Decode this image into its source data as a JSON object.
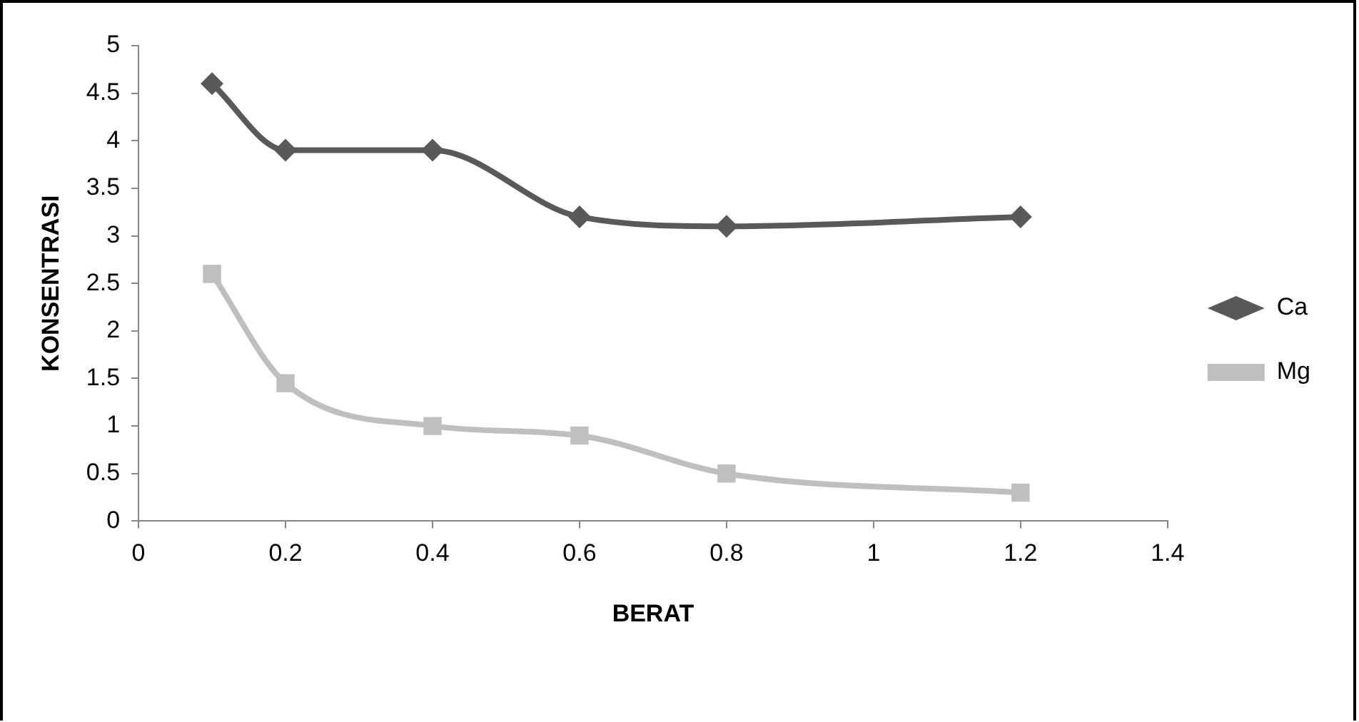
{
  "chart_data": {
    "type": "line",
    "xlabel": "BERAT",
    "ylabel": "KONSENTRASI",
    "x": [
      0.1,
      0.2,
      0.4,
      0.6,
      0.8,
      1.2
    ],
    "series": [
      {
        "name": "Ca",
        "color": "#595959",
        "marker": "diamond",
        "values": [
          4.6,
          3.9,
          3.9,
          3.2,
          3.1,
          3.2
        ]
      },
      {
        "name": "Mg",
        "color": "#bfbfbf",
        "marker": "square",
        "values": [
          2.6,
          1.45,
          1.0,
          0.9,
          0.5,
          0.3
        ]
      }
    ],
    "xlim": [
      0,
      1.4
    ],
    "xticks": [
      0,
      0.2,
      0.4,
      0.6,
      0.8,
      1,
      1.2,
      1.4
    ],
    "ylim": [
      0,
      5
    ],
    "yticks": [
      0,
      0.5,
      1,
      1.5,
      2,
      2.5,
      3,
      3.5,
      4,
      4.5,
      5
    ],
    "grid": false,
    "legend": "right",
    "line_style": "solid"
  }
}
